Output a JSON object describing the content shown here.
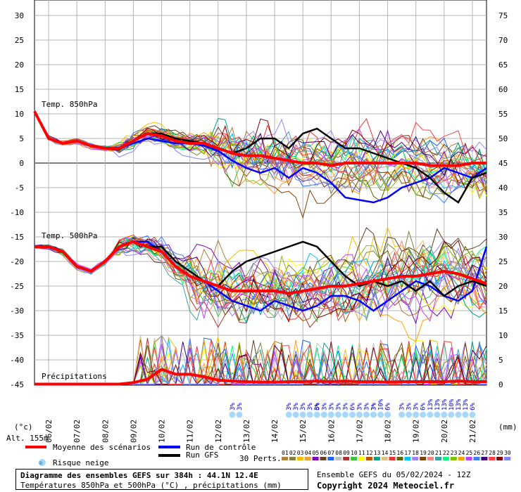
{
  "labels": {
    "temp850": "Temp. 850hPa",
    "temp500": "Temp. 500hPa",
    "precip": "Précipitations",
    "left_unit": "(°c)",
    "right_unit": "(mm)",
    "altitude": "Alt. 155m"
  },
  "legend": {
    "mean": "Moyenne des scénarios",
    "control": "Run de contrôle",
    "gfs": "Run GFS",
    "snow": "Risque neige",
    "perts": "30 Perts.",
    "pert_numbers": [
      "01",
      "02",
      "03",
      "04",
      "05",
      "06",
      "07",
      "08",
      "09",
      "10",
      "11",
      "12",
      "13",
      "14",
      "15",
      "16",
      "17",
      "18",
      "19",
      "20",
      "21",
      "22",
      "23",
      "24",
      "25",
      "26",
      "27",
      "28",
      "29",
      "30"
    ]
  },
  "colors": {
    "mean": "#ff0000",
    "control": "#0000ff",
    "gfs": "#000000",
    "grid": "#b4b4b4",
    "snow": "#a8d8f8",
    "snow_text": "#0000cc",
    "perts": [
      "#b08040",
      "#808040",
      "#f0c000",
      "#f0a030",
      "#8000c0",
      "#604020",
      "#2060ff",
      "#c0c0c0",
      "#b03030",
      "#40c040",
      "#ffff00",
      "#c05000",
      "#00a080",
      "#e0c080",
      "#f03030",
      "#606000",
      "#00c0ff",
      "#a080ff",
      "#804000",
      "#ff8080",
      "#40a0a0",
      "#00ff80",
      "#80c000",
      "#ffa000",
      "#c040ff",
      "#4080ff",
      "#400080",
      "#ff4040",
      "#800000",
      "#8080ff"
    ]
  },
  "footer": {
    "title": "Diagramme des ensembles GEFS sur 384h : 44.1N 12.4E",
    "subtitle": "Températures 850hPa et 500hPa (°C) , précipitations (mm)",
    "run": "Ensemble GEFS du 05/02/2024 - 12Z",
    "copyright": "Copyright 2024 Meteociel.fr"
  },
  "chart_data": {
    "type": "line",
    "x_dates": [
      "06/02",
      "07/02",
      "08/02",
      "09/02",
      "10/02",
      "11/02",
      "12/02",
      "13/02",
      "14/02",
      "15/02",
      "16/02",
      "17/02",
      "18/02",
      "19/02",
      "20/02",
      "21/02"
    ],
    "left_axis_ticks": [
      "30",
      "25",
      "20",
      "15",
      "10",
      "5",
      "0",
      "-5",
      "-10",
      "-15",
      "-20",
      "-25",
      "-30",
      "-35",
      "-40",
      "-45"
    ],
    "right_axis_ticks": [
      "75",
      "70",
      "65",
      "60",
      "55",
      "50",
      "45",
      "40",
      "35",
      "30",
      "25",
      "20",
      "15",
      "10",
      "5",
      "0"
    ],
    "ylim_temp": [
      -45,
      30
    ],
    "ylim_precip_mm": [
      0,
      75
    ],
    "x_hours_range": [
      0,
      384
    ],
    "temp850_mean": [
      [
        0,
        10.5
      ],
      [
        12,
        5
      ],
      [
        24,
        4
      ],
      [
        36,
        4.5
      ],
      [
        48,
        3.5
      ],
      [
        60,
        3
      ],
      [
        72,
        3
      ],
      [
        84,
        4.5
      ],
      [
        96,
        6
      ],
      [
        108,
        5.5
      ],
      [
        120,
        4.5
      ],
      [
        132,
        4
      ],
      [
        144,
        4
      ],
      [
        156,
        3
      ],
      [
        168,
        2
      ],
      [
        180,
        1.5
      ],
      [
        192,
        1.5
      ],
      [
        204,
        1
      ],
      [
        216,
        0.5
      ],
      [
        228,
        0
      ],
      [
        240,
        0
      ],
      [
        252,
        -0.5
      ],
      [
        264,
        0
      ],
      [
        276,
        0
      ],
      [
        288,
        0
      ],
      [
        300,
        0
      ],
      [
        312,
        0
      ],
      [
        324,
        0
      ],
      [
        336,
        -0.5
      ],
      [
        348,
        -0.5
      ],
      [
        360,
        -0.5
      ],
      [
        372,
        0
      ],
      [
        384,
        0
      ]
    ],
    "temp850_control": [
      [
        0,
        10.5
      ],
      [
        12,
        5
      ],
      [
        24,
        4
      ],
      [
        36,
        4.5
      ],
      [
        48,
        3.5
      ],
      [
        60,
        3
      ],
      [
        72,
        3
      ],
      [
        84,
        4
      ],
      [
        96,
        5
      ],
      [
        108,
        4.5
      ],
      [
        120,
        4
      ],
      [
        132,
        4
      ],
      [
        144,
        3.5
      ],
      [
        156,
        2.5
      ],
      [
        168,
        0.5
      ],
      [
        180,
        -1
      ],
      [
        192,
        -2
      ],
      [
        204,
        -1
      ],
      [
        216,
        -3
      ],
      [
        228,
        -1
      ],
      [
        240,
        -2
      ],
      [
        252,
        -4
      ],
      [
        264,
        -7
      ],
      [
        276,
        -7.5
      ],
      [
        288,
        -8
      ],
      [
        300,
        -7
      ],
      [
        312,
        -5
      ],
      [
        324,
        -4
      ],
      [
        336,
        -3
      ],
      [
        348,
        -1
      ],
      [
        360,
        -2
      ],
      [
        372,
        -3
      ],
      [
        384,
        -1
      ]
    ],
    "temp850_gfs": [
      [
        0,
        10.5
      ],
      [
        12,
        5
      ],
      [
        24,
        4
      ],
      [
        36,
        4.5
      ],
      [
        48,
        3.5
      ],
      [
        60,
        3
      ],
      [
        72,
        3
      ],
      [
        84,
        4.5
      ],
      [
        96,
        6
      ],
      [
        108,
        6
      ],
      [
        120,
        5
      ],
      [
        132,
        4.5
      ],
      [
        144,
        4
      ],
      [
        156,
        3
      ],
      [
        168,
        2
      ],
      [
        180,
        3
      ],
      [
        192,
        5
      ],
      [
        204,
        5
      ],
      [
        216,
        3
      ],
      [
        228,
        6
      ],
      [
        240,
        7
      ],
      [
        252,
        5
      ],
      [
        264,
        3
      ],
      [
        276,
        3
      ],
      [
        288,
        2
      ],
      [
        300,
        1
      ],
      [
        312,
        0
      ],
      [
        324,
        -1
      ],
      [
        336,
        -3
      ],
      [
        348,
        -6
      ],
      [
        360,
        -8
      ],
      [
        372,
        -3
      ],
      [
        384,
        -2
      ]
    ],
    "temp500_mean": [
      [
        0,
        -17
      ],
      [
        12,
        -17
      ],
      [
        24,
        -18
      ],
      [
        36,
        -21
      ],
      [
        48,
        -22
      ],
      [
        60,
        -20
      ],
      [
        72,
        -17
      ],
      [
        84,
        -16
      ],
      [
        96,
        -17
      ],
      [
        108,
        -18
      ],
      [
        120,
        -21
      ],
      [
        132,
        -23
      ],
      [
        144,
        -24
      ],
      [
        156,
        -25
      ],
      [
        168,
        -26
      ],
      [
        180,
        -26
      ],
      [
        192,
        -26
      ],
      [
        204,
        -26
      ],
      [
        216,
        -26.5
      ],
      [
        228,
        -26
      ],
      [
        240,
        -25.5
      ],
      [
        252,
        -25
      ],
      [
        264,
        -25
      ],
      [
        276,
        -24.5
      ],
      [
        288,
        -24
      ],
      [
        300,
        -23.5
      ],
      [
        312,
        -23
      ],
      [
        324,
        -23
      ],
      [
        336,
        -22.5
      ],
      [
        348,
        -22
      ],
      [
        360,
        -22.5
      ],
      [
        372,
        -23.5
      ],
      [
        384,
        -24.5
      ]
    ],
    "temp500_control": [
      [
        0,
        -17
      ],
      [
        12,
        -17
      ],
      [
        24,
        -18
      ],
      [
        36,
        -21
      ],
      [
        48,
        -22
      ],
      [
        60,
        -20
      ],
      [
        72,
        -17
      ],
      [
        84,
        -16
      ],
      [
        96,
        -16
      ],
      [
        108,
        -18
      ],
      [
        120,
        -21
      ],
      [
        132,
        -23
      ],
      [
        144,
        -24
      ],
      [
        156,
        -26
      ],
      [
        168,
        -28
      ],
      [
        180,
        -29
      ],
      [
        192,
        -30
      ],
      [
        204,
        -28
      ],
      [
        216,
        -29
      ],
      [
        228,
        -30
      ],
      [
        240,
        -29
      ],
      [
        252,
        -27
      ],
      [
        264,
        -27
      ],
      [
        276,
        -28
      ],
      [
        288,
        -30
      ],
      [
        300,
        -28
      ],
      [
        312,
        -26
      ],
      [
        324,
        -24
      ],
      [
        336,
        -25
      ],
      [
        348,
        -27
      ],
      [
        360,
        -28
      ],
      [
        372,
        -26
      ],
      [
        384,
        -17
      ]
    ],
    "temp500_gfs": [
      [
        0,
        -17
      ],
      [
        12,
        -17
      ],
      [
        24,
        -18
      ],
      [
        36,
        -21
      ],
      [
        48,
        -22
      ],
      [
        60,
        -20
      ],
      [
        72,
        -17
      ],
      [
        84,
        -16
      ],
      [
        96,
        -17
      ],
      [
        108,
        -17
      ],
      [
        120,
        -20
      ],
      [
        132,
        -22
      ],
      [
        144,
        -24
      ],
      [
        156,
        -25
      ],
      [
        168,
        -22
      ],
      [
        180,
        -20
      ],
      [
        192,
        -19
      ],
      [
        204,
        -18
      ],
      [
        216,
        -17
      ],
      [
        228,
        -16
      ],
      [
        240,
        -17
      ],
      [
        252,
        -20
      ],
      [
        264,
        -23
      ],
      [
        276,
        -25
      ],
      [
        288,
        -24
      ],
      [
        300,
        -25
      ],
      [
        312,
        -24
      ],
      [
        324,
        -26
      ],
      [
        336,
        -24
      ],
      [
        348,
        -27
      ],
      [
        360,
        -25
      ],
      [
        372,
        -24
      ],
      [
        384,
        -25
      ]
    ],
    "precip_mean_mm": [
      [
        0,
        0
      ],
      [
        24,
        0
      ],
      [
        48,
        0
      ],
      [
        72,
        0
      ],
      [
        84,
        0.3
      ],
      [
        96,
        1
      ],
      [
        108,
        3
      ],
      [
        120,
        2
      ],
      [
        132,
        2
      ],
      [
        144,
        1.5
      ],
      [
        156,
        0.8
      ],
      [
        168,
        0.6
      ],
      [
        180,
        0.5
      ],
      [
        192,
        0.4
      ],
      [
        204,
        0.4
      ],
      [
        216,
        0.5
      ],
      [
        228,
        0.5
      ],
      [
        240,
        0.6
      ],
      [
        252,
        0.5
      ],
      [
        264,
        0.6
      ],
      [
        276,
        0.5
      ],
      [
        288,
        0.5
      ],
      [
        300,
        0.4
      ],
      [
        312,
        0.5
      ],
      [
        324,
        0.5
      ],
      [
        336,
        0.5
      ],
      [
        348,
        0.5
      ],
      [
        360,
        0.6
      ],
      [
        372,
        0.5
      ],
      [
        384,
        0.5
      ]
    ],
    "snow_risk_labels": [
      {
        "date": "13/02",
        "pct": "3%"
      },
      {
        "date": "13/02",
        "pct": "3%"
      },
      {
        "date": "15/02",
        "pct": "3%"
      },
      {
        "date": "15/02",
        "pct": "3%"
      },
      {
        "date": "15/02",
        "pct": "3%"
      },
      {
        "date": "15/02",
        "pct": "3%"
      },
      {
        "date": "15/02",
        "pct": "3%"
      },
      {
        "date": "16/02",
        "pct": "6%"
      },
      {
        "date": "16/02",
        "pct": "3%"
      },
      {
        "date": "16/02",
        "pct": "3%"
      },
      {
        "date": "16/02",
        "pct": "3%"
      },
      {
        "date": "17/02",
        "pct": "3%"
      },
      {
        "date": "17/02",
        "pct": "6%"
      },
      {
        "date": "17/02",
        "pct": "3%"
      },
      {
        "date": "17/02",
        "pct": "3%"
      },
      {
        "date": "17/02",
        "pct": "3%"
      },
      {
        "date": "18/02",
        "pct": "3%"
      },
      {
        "date": "18/02",
        "pct": "10%"
      },
      {
        "date": "18/02",
        "pct": "6%"
      },
      {
        "date": "19/02",
        "pct": "3%"
      },
      {
        "date": "19/02",
        "pct": "3%"
      },
      {
        "date": "19/02",
        "pct": "3%"
      },
      {
        "date": "19/02",
        "pct": "6%"
      },
      {
        "date": "20/02",
        "pct": "13%"
      },
      {
        "date": "20/02",
        "pct": "13%"
      },
      {
        "date": "20/02",
        "pct": "13%"
      },
      {
        "date": "20/02",
        "pct": "10%"
      },
      {
        "date": "21/02",
        "pct": "13%"
      },
      {
        "date": "21/02",
        "pct": "13%"
      },
      {
        "date": "21/02",
        "pct": "6%"
      }
    ]
  }
}
